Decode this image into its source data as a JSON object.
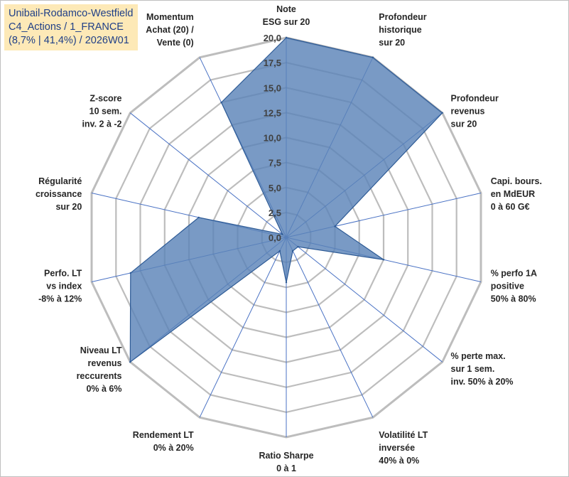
{
  "title_box": {
    "line1": "Unibail-Rodamco-Westfield",
    "line2": "C4_Actions / 1_FRANCE",
    "line3": "(8,7% | 41,4%) / 2026W01"
  },
  "colors": {
    "fill": "#5b84b8",
    "stroke": "#2e5b96",
    "spoke": "#4a72c4",
    "grid": "#bdbdbd",
    "title_bg": "#fde9b7",
    "title_text": "#1f3f87"
  },
  "chart_data": {
    "type": "radar",
    "scale": {
      "min": 0,
      "max": 20,
      "step": 2.5
    },
    "tick_labels": [
      "0,0",
      "2,5",
      "5,0",
      "7,5",
      "10,0",
      "12,5",
      "15,0",
      "17,5",
      "20,0"
    ],
    "axes": [
      {
        "lines": [
          "Note",
          "ESG sur 20"
        ],
        "value": 20
      },
      {
        "lines": [
          "Profondeur",
          "historique",
          "sur 20"
        ],
        "value": 20
      },
      {
        "lines": [
          "Profondeur",
          "revenus",
          "sur 20"
        ],
        "value": 20
      },
      {
        "lines": [
          "Capi. bours.",
          "en MdEUR",
          "0 à 60 G€"
        ],
        "value": 5
      },
      {
        "lines": [
          "% perfo 1A",
          "positive",
          "50% à 80%"
        ],
        "value": 10
      },
      {
        "lines": [
          "% perte max.",
          "sur 1 sem.",
          "inv. 50% à 20%"
        ],
        "value": 1.5
      },
      {
        "lines": [
          "Volatilité LT",
          "inversée",
          "40% à 0%"
        ],
        "value": 1.5
      },
      {
        "lines": [
          "Ratio Sharpe",
          "0 à 1"
        ],
        "value": 4.5
      },
      {
        "lines": [
          "Rendement LT",
          "0% à 20%"
        ],
        "value": 1.5
      },
      {
        "lines": [
          "Niveau LT",
          "revenus",
          "reccurents",
          "0% à 6%"
        ],
        "value": 20
      },
      {
        "lines": [
          "Perfo. LT",
          "vs index",
          "-8% à 12%"
        ],
        "value": 16
      },
      {
        "lines": [
          "Régularité",
          "croissance",
          "sur 20"
        ],
        "value": 9
      },
      {
        "lines": [
          "Z-score",
          "10 sem.",
          "inv. 2 à -2"
        ],
        "value": 0.5
      },
      {
        "lines": [
          "Momentum",
          "Achat (20) /",
          "Vente (0)"
        ],
        "value": 15
      }
    ]
  }
}
